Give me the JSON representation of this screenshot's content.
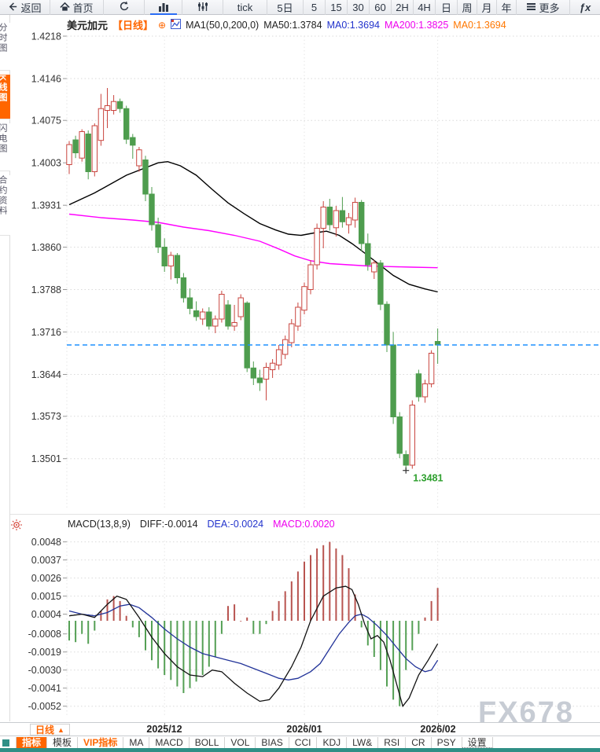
{
  "toolbar": {
    "items": [
      {
        "name": "back",
        "icon": "back-icon",
        "label": "返回"
      },
      {
        "name": "home",
        "icon": "home-icon",
        "label": "首页"
      },
      {
        "name": "refresh",
        "icon": "refresh-icon",
        "label": ""
      },
      {
        "name": "chart-type",
        "icon": "bar-chart-icon",
        "label": ""
      },
      {
        "name": "indicator-settings",
        "icon": "sliders-icon",
        "label": ""
      },
      {
        "name": "tick",
        "icon": "",
        "label": "tick"
      },
      {
        "name": "5d",
        "icon": "",
        "label": "5日"
      },
      {
        "name": "m5",
        "icon": "",
        "label": "5"
      },
      {
        "name": "m15",
        "icon": "",
        "label": "15"
      },
      {
        "name": "m30",
        "icon": "",
        "label": "30"
      },
      {
        "name": "m60",
        "icon": "",
        "label": "60"
      },
      {
        "name": "h2",
        "icon": "",
        "label": "2H"
      },
      {
        "name": "h4",
        "icon": "",
        "label": "4H"
      },
      {
        "name": "day",
        "icon": "",
        "label": "日"
      },
      {
        "name": "week",
        "icon": "",
        "label": "周"
      },
      {
        "name": "month",
        "icon": "",
        "label": "月"
      },
      {
        "name": "year",
        "icon": "",
        "label": "年"
      },
      {
        "name": "more",
        "icon": "menu-icon",
        "label": "更多"
      },
      {
        "name": "fx",
        "icon": "",
        "label": "ƒx"
      }
    ]
  },
  "sidebar": {
    "items": [
      {
        "label": "分时图",
        "active": false
      },
      {
        "label": "K线图",
        "active": true
      },
      {
        "label": "闪电图",
        "active": false
      },
      {
        "label": "合约资料",
        "active": false
      }
    ]
  },
  "chart_header": {
    "symbol": "美元加元",
    "period_tag": "【日线】",
    "plus_icon": "⊕",
    "ma_group": "MA1(50,0,200,0)",
    "ma50_label": "MA50:1.3784",
    "ma0_blue_label": "MA0:1.3694",
    "ma200_label": "MA200:1.3825",
    "ma0_orange_label": "MA0:1.3694"
  },
  "macd_header": {
    "title": "MACD(13,8,9)",
    "diff_label": "DIFF:-0.0014",
    "dea_label": "DEA:-0.0024",
    "macd_label": "MACD:0.0020"
  },
  "low_label": "1.3481",
  "watermark": "FX678",
  "period_button": {
    "label": "日线",
    "arrow": "▲"
  },
  "bottom_tabs": [
    {
      "label": "指标",
      "state": "active"
    },
    {
      "label": "模板",
      "state": ""
    },
    {
      "label": "VIP指标",
      "state": "vip"
    },
    {
      "label": "MA",
      "state": ""
    },
    {
      "label": "MACD",
      "state": ""
    },
    {
      "label": "BOLL",
      "state": ""
    },
    {
      "label": "VOL",
      "state": ""
    },
    {
      "label": "BIAS",
      "state": ""
    },
    {
      "label": "CCI",
      "state": ""
    },
    {
      "label": "KDJ",
      "state": ""
    },
    {
      "label": "LW&",
      "state": ""
    },
    {
      "label": "RSI",
      "state": ""
    },
    {
      "label": "CR",
      "state": ""
    },
    {
      "label": "PSY",
      "state": ""
    },
    {
      "label": "设置",
      "state": "dotted"
    }
  ],
  "colors": {
    "accent_orange": "#ff6600",
    "candle_up": "#c9453f",
    "candle_down": "#4e9d4e",
    "ma50": "#000000",
    "ma200": "#ff00ff",
    "diff_line": "#111111",
    "dea_line": "#223399",
    "blue_value": "#2233cc",
    "magenta_value": "#ee00ee",
    "orange_value": "#ff7700",
    "current_price_line": "#1e90ff",
    "low_label_green": "#2fa02f",
    "hist_up": "#b85450",
    "hist_down": "#55a055",
    "watermark_gray": "#c7ccd4",
    "teal_bar": "#2f8f86",
    "toolbar_indicator_blue": "#2a6df5"
  },
  "chart_data": [
    {
      "type": "candlestick",
      "panel": "main",
      "symbol": "美元加元",
      "period": "日线",
      "ma50_value": 1.3784,
      "ma200_value": 1.3825,
      "last_price": 1.3694,
      "low_marker": {
        "index": 53,
        "price": 1.3481
      },
      "y_ticks": [
        1.4218,
        1.4146,
        1.4075,
        1.4003,
        1.3931,
        1.386,
        1.3788,
        1.3716,
        1.3644,
        1.3573,
        1.3501
      ],
      "x_ticks": [
        {
          "index": 15,
          "label": "2025/12"
        },
        {
          "index": 37,
          "label": "2026/01"
        },
        {
          "index": 58,
          "label": "2026/02"
        }
      ],
      "candles": [
        [
          1.4,
          1.404,
          1.3984,
          1.4034
        ],
        [
          1.4042,
          1.4049,
          1.4011,
          1.402
        ],
        [
          1.4011,
          1.406,
          1.4005,
          1.4056
        ],
        [
          1.4052,
          1.4058,
          1.3975,
          1.3988
        ],
        [
          1.3988,
          1.407,
          1.398,
          1.4066
        ],
        [
          1.4041,
          1.412,
          1.4032,
          1.4095
        ],
        [
          1.4092,
          1.413,
          1.4062,
          1.41
        ],
        [
          1.4092,
          1.4118,
          1.4085,
          1.4107
        ],
        [
          1.4107,
          1.4112,
          1.4088,
          1.4095
        ],
        [
          1.4095,
          1.41,
          1.4035,
          1.4043
        ],
        [
          1.4046,
          1.4052,
          1.401,
          1.4033
        ],
        [
          1.3998,
          1.403,
          1.3988,
          1.4025
        ],
        [
          1.4008,
          1.4015,
          1.3938,
          1.395
        ],
        [
          1.395,
          1.3962,
          1.3888,
          1.3898
        ],
        [
          1.3898,
          1.391,
          1.385,
          1.386
        ],
        [
          1.386,
          1.3875,
          1.3818,
          1.3828
        ],
        [
          1.3828,
          1.3852,
          1.3805,
          1.3846
        ],
        [
          1.3846,
          1.385,
          1.3798,
          1.3808
        ],
        [
          1.3808,
          1.3816,
          1.3766,
          1.3774
        ],
        [
          1.3774,
          1.379,
          1.3746,
          1.3756
        ],
        [
          1.3752,
          1.3768,
          1.3735,
          1.3742
        ],
        [
          1.3738,
          1.3756,
          1.3728,
          1.375
        ],
        [
          1.375,
          1.3758,
          1.372,
          1.3726
        ],
        [
          1.3726,
          1.3744,
          1.3714,
          1.3738
        ],
        [
          1.3738,
          1.3786,
          1.3732,
          1.378
        ],
        [
          1.3762,
          1.377,
          1.372,
          1.3726
        ],
        [
          1.3726,
          1.3762,
          1.3718,
          1.3732
        ],
        [
          1.3742,
          1.378,
          1.3736,
          1.3774
        ],
        [
          1.3765,
          1.3768,
          1.3648,
          1.3655
        ],
        [
          1.3655,
          1.3666,
          1.3626,
          1.3638
        ],
        [
          1.3638,
          1.3652,
          1.3616,
          1.363
        ],
        [
          1.3636,
          1.3664,
          1.36,
          1.3656
        ],
        [
          1.3652,
          1.367,
          1.3638,
          1.3663
        ],
        [
          1.366,
          1.3694,
          1.3652,
          1.3686
        ],
        [
          1.3678,
          1.371,
          1.367,
          1.3703
        ],
        [
          1.3698,
          1.3738,
          1.369,
          1.373
        ],
        [
          1.3726,
          1.3766,
          1.3718,
          1.3758
        ],
        [
          1.3753,
          1.38,
          1.3746,
          1.3793
        ],
        [
          1.3788,
          1.3838,
          1.378,
          1.383
        ],
        [
          1.383,
          1.39,
          1.3822,
          1.3892
        ],
        [
          1.3892,
          1.3938,
          1.3858,
          1.3928
        ],
        [
          1.3928,
          1.3942,
          1.3888,
          1.3898
        ],
        [
          1.3893,
          1.393,
          1.3878,
          1.3922
        ],
        [
          1.3922,
          1.3945,
          1.3893,
          1.3903
        ],
        [
          1.3898,
          1.3918,
          1.3883,
          1.391
        ],
        [
          1.3906,
          1.3944,
          1.3893,
          1.3936
        ],
        [
          1.3936,
          1.394,
          1.3853,
          1.3866
        ],
        [
          1.3866,
          1.3883,
          1.382,
          1.383
        ],
        [
          1.3818,
          1.3838,
          1.3806,
          1.3833
        ],
        [
          1.3833,
          1.3838,
          1.3753,
          1.3763
        ],
        [
          1.3763,
          1.3768,
          1.3682,
          1.3694
        ],
        [
          1.3694,
          1.3716,
          1.356,
          1.3572
        ],
        [
          1.3572,
          1.358,
          1.3502,
          1.351
        ],
        [
          1.3508,
          1.3515,
          1.3481,
          1.349
        ],
        [
          1.349,
          1.36,
          1.3484,
          1.3592
        ],
        [
          1.3645,
          1.3652,
          1.3598,
          1.3606
        ],
        [
          1.3606,
          1.3635,
          1.3596,
          1.3628
        ],
        [
          1.3628,
          1.3685,
          1.3622,
          1.368
        ],
        [
          1.37,
          1.3722,
          1.3662,
          1.3694
        ]
      ],
      "ma50_points": [
        [
          0,
          1.3932
        ],
        [
          4,
          1.3952
        ],
        [
          9,
          1.3982
        ],
        [
          14,
          1.4003
        ],
        [
          15.5,
          1.4005
        ],
        [
          17.5,
          1.3998
        ],
        [
          20,
          1.3982
        ],
        [
          22.5,
          1.3958
        ],
        [
          25,
          1.3935
        ],
        [
          27.5,
          1.3917
        ],
        [
          30,
          1.39
        ],
        [
          32.5,
          1.3889
        ],
        [
          34.5,
          1.3882
        ],
        [
          36.5,
          1.388
        ],
        [
          38.5,
          1.3884
        ],
        [
          40.5,
          1.3887
        ],
        [
          42.5,
          1.388
        ],
        [
          44.5,
          1.3866
        ],
        [
          46.5,
          1.385
        ],
        [
          48.5,
          1.3833
        ],
        [
          51,
          1.3812
        ],
        [
          53.5,
          1.3797
        ],
        [
          56,
          1.3789
        ],
        [
          58,
          1.3784
        ]
      ],
      "ma200_points": [
        [
          0,
          1.3916
        ],
        [
          5,
          1.391
        ],
        [
          10,
          1.3906
        ],
        [
          14,
          1.3902
        ],
        [
          18,
          1.3894
        ],
        [
          22,
          1.3888
        ],
        [
          26,
          1.388
        ],
        [
          30,
          1.387
        ],
        [
          33,
          1.3857
        ],
        [
          35.5,
          1.3845
        ],
        [
          38,
          1.3837
        ],
        [
          41,
          1.3832
        ],
        [
          44,
          1.383
        ],
        [
          47,
          1.3828
        ],
        [
          50,
          1.3827
        ],
        [
          54,
          1.3826
        ],
        [
          58,
          1.3825
        ]
      ]
    },
    {
      "type": "macd",
      "panel": "sub",
      "params": [
        13,
        8,
        9
      ],
      "diff": -0.0014,
      "dea": -0.0024,
      "macd": 0.002,
      "y_ticks": [
        0.0048,
        0.0037,
        0.0026,
        0.0015,
        0.0004,
        -0.0008,
        -0.0019,
        -0.003,
        -0.0041,
        -0.0052
      ],
      "hist": [
        -0.0012,
        -0.0013,
        -0.0008,
        -0.0014,
        -0.0006,
        0.0006,
        0.0013,
        0.0015,
        0.0012,
        0.0003,
        -0.0004,
        -0.001,
        -0.0018,
        -0.0024,
        -0.0029,
        -0.0033,
        -0.0036,
        -0.004,
        -0.0044,
        -0.0041,
        -0.0037,
        -0.0033,
        -0.0028,
        -0.0022,
        -0.0008,
        0.0009,
        0.001,
        0.0,
        0.0002,
        -0.0008,
        -0.0008,
        -0.0002,
        0.0006,
        0.0012,
        0.0018,
        0.0024,
        0.003,
        0.0036,
        0.004,
        0.0044,
        0.0046,
        0.0048,
        0.0044,
        0.004,
        0.0032,
        0.0016,
        -0.0004,
        -0.0015,
        -0.0022,
        -0.003,
        -0.004,
        -0.0048,
        -0.0052,
        -0.003,
        -0.0018,
        -0.0008,
        0.0002,
        0.0012,
        0.002
      ],
      "diff_points": [
        [
          0,
          0.0003
        ],
        [
          2,
          0.0004
        ],
        [
          4,
          0.0002
        ],
        [
          6,
          0.001
        ],
        [
          7.5,
          0.0015
        ],
        [
          9,
          0.0013
        ],
        [
          11,
          0.0002
        ],
        [
          13,
          -0.001
        ],
        [
          15,
          -0.002
        ],
        [
          17,
          -0.0028
        ],
        [
          19,
          -0.0033
        ],
        [
          21,
          -0.0034
        ],
        [
          22.5,
          -0.003
        ],
        [
          24,
          -0.0031
        ],
        [
          26,
          -0.0038
        ],
        [
          28,
          -0.0044
        ],
        [
          30,
          -0.0049
        ],
        [
          31.5,
          -0.0048
        ],
        [
          33,
          -0.0041
        ],
        [
          35,
          -0.0028
        ],
        [
          36.5,
          -0.0016
        ],
        [
          38,
          0.0
        ],
        [
          40,
          0.0015
        ],
        [
          42,
          0.002
        ],
        [
          43.5,
          0.0021
        ],
        [
          44.5,
          0.0019
        ],
        [
          45.5,
          0.001
        ],
        [
          46.5,
          -0.0002
        ],
        [
          47.5,
          -0.0011
        ],
        [
          48.5,
          -0.0009
        ],
        [
          49.5,
          -0.0013
        ],
        [
          50.5,
          -0.0024
        ],
        [
          51.5,
          -0.0038
        ],
        [
          52.5,
          -0.0052
        ],
        [
          53.5,
          -0.0047
        ],
        [
          55,
          -0.0033
        ],
        [
          56.5,
          -0.0024
        ],
        [
          58,
          -0.0014
        ]
      ],
      "dea_points": [
        [
          0,
          0.0006
        ],
        [
          2,
          0.0004
        ],
        [
          4,
          0.0003
        ],
        [
          6,
          0.0005
        ],
        [
          8,
          0.0009
        ],
        [
          9.5,
          0.001
        ],
        [
          11,
          0.0008
        ],
        [
          13,
          0.0002
        ],
        [
          15,
          -0.0005
        ],
        [
          17,
          -0.0011
        ],
        [
          19,
          -0.0016
        ],
        [
          21,
          -0.002
        ],
        [
          23,
          -0.0022
        ],
        [
          25,
          -0.0024
        ],
        [
          27,
          -0.0026
        ],
        [
          29,
          -0.0029
        ],
        [
          31,
          -0.0032
        ],
        [
          33,
          -0.0035
        ],
        [
          34.5,
          -0.0036
        ],
        [
          36,
          -0.0035
        ],
        [
          38,
          -0.0031
        ],
        [
          39.5,
          -0.0026
        ],
        [
          41,
          -0.0017
        ],
        [
          42.5,
          -0.0008
        ],
        [
          44,
          -0.0001
        ],
        [
          45,
          0.0003
        ],
        [
          46,
          0.0004
        ],
        [
          47,
          0.0002
        ],
        [
          48.5,
          -0.0003
        ],
        [
          50,
          -0.0009
        ],
        [
          51.5,
          -0.0016
        ],
        [
          53,
          -0.0023
        ],
        [
          54.5,
          -0.0028
        ],
        [
          56,
          -0.0031
        ],
        [
          57,
          -0.003
        ],
        [
          58,
          -0.0024
        ]
      ]
    }
  ]
}
